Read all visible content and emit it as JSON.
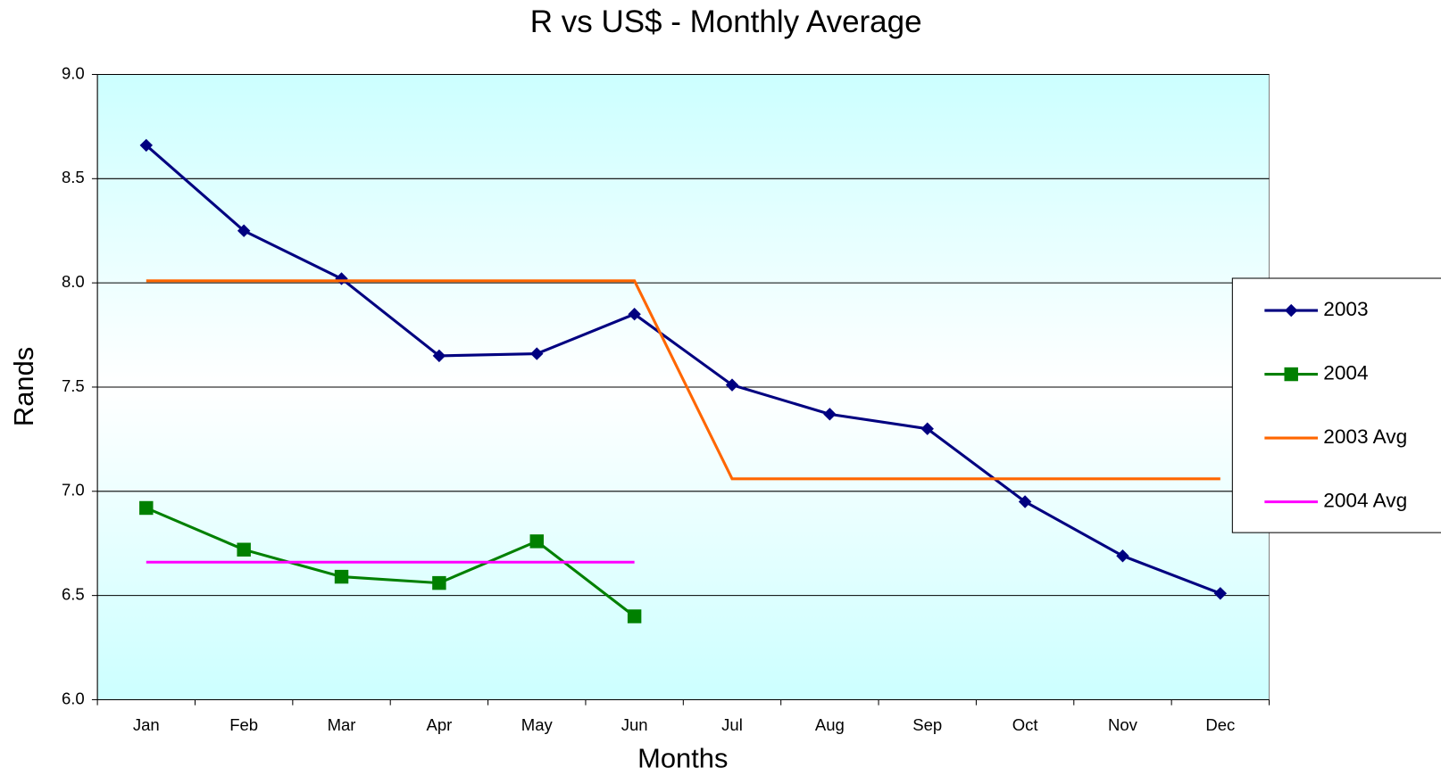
{
  "chart_data": {
    "type": "line",
    "title": "R vs US$ - Monthly Average",
    "x_label": "Months",
    "y_label": "Rands",
    "categories": [
      "Jan",
      "Feb",
      "Mar",
      "Apr",
      "May",
      "Jun",
      "Jul",
      "Aug",
      "Sep",
      "Oct",
      "Nov",
      "Dec"
    ],
    "series": [
      {
        "name": "2003",
        "color": "#000080",
        "marker": "diamond",
        "values": [
          8.66,
          8.25,
          8.02,
          7.65,
          7.66,
          7.85,
          7.51,
          7.37,
          7.3,
          6.95,
          6.69,
          6.51
        ]
      },
      {
        "name": "2004",
        "color": "#008000",
        "marker": "square",
        "values": [
          6.92,
          6.72,
          6.59,
          6.56,
          6.76,
          6.4,
          null,
          null,
          null,
          null,
          null,
          null
        ]
      },
      {
        "name": "2003 Avg",
        "color": "#ff6600",
        "marker": "none",
        "values": [
          8.01,
          8.01,
          8.01,
          8.01,
          8.01,
          8.01,
          7.06,
          7.06,
          7.06,
          7.06,
          7.06,
          7.06
        ]
      },
      {
        "name": "2004 Avg",
        "color": "#ff00ff",
        "marker": "none",
        "values": [
          6.66,
          6.66,
          6.66,
          6.66,
          6.66,
          6.66,
          null,
          null,
          null,
          null,
          null,
          null
        ]
      }
    ],
    "ylim": [
      6,
      9
    ],
    "yticks": [
      {
        "value": 6,
        "label": "6.0"
      },
      6.5,
      {
        "value": 7,
        "label": "7.0"
      },
      7.5,
      {
        "value": 8,
        "label": "8.0"
      },
      8.5,
      {
        "value": 9,
        "label": "9.0"
      }
    ],
    "grid": true,
    "legend": "right"
  }
}
